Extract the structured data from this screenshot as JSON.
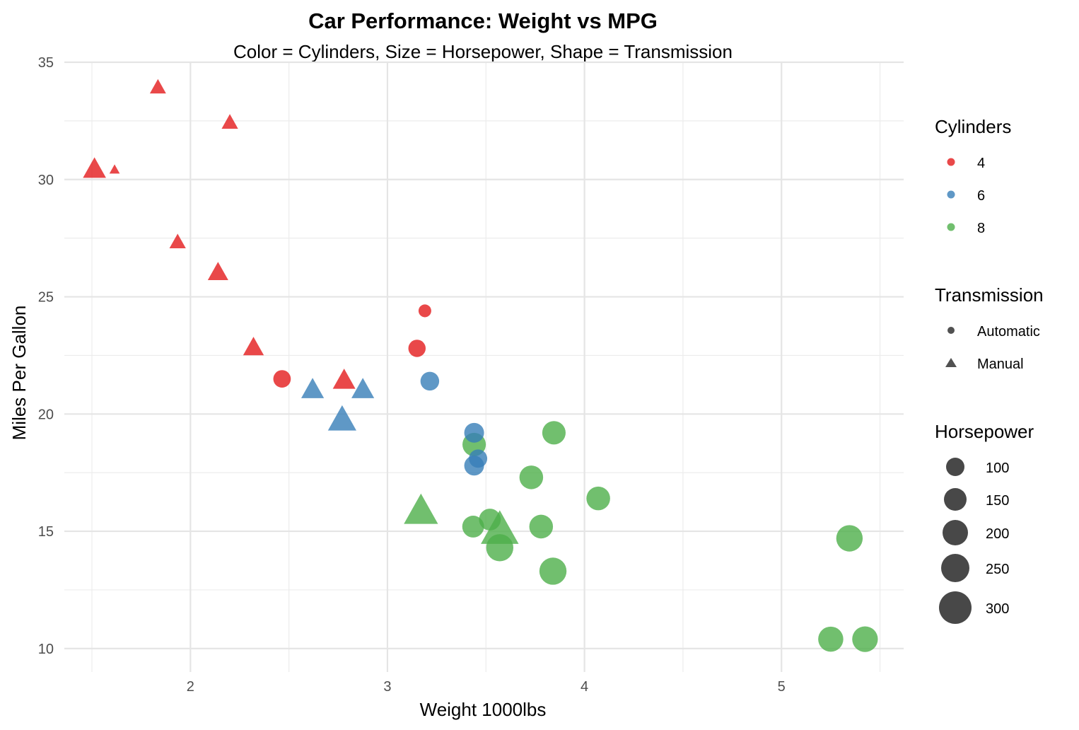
{
  "chart_data": {
    "type": "scatter",
    "title": "Car Performance: Weight vs MPG",
    "subtitle": "Color = Cylinders, Size = Horsepower, Shape = Transmission",
    "xlabel": "Weight 1000lbs",
    "ylabel": "Miles Per Gallon",
    "xlim": [
      1.36,
      5.62
    ],
    "ylim": [
      9.0,
      35.0
    ],
    "x_ticks": [
      2,
      3,
      4,
      5
    ],
    "y_ticks": [
      10,
      15,
      20,
      25,
      30,
      35
    ],
    "grid": true,
    "legend_position": "right",
    "colors": {
      "4": "#E41A1C",
      "6": "#377EB8",
      "8": "#4DAF4A"
    },
    "legends": {
      "cylinders": {
        "title": "Cylinders",
        "items": [
          "4",
          "6",
          "8"
        ]
      },
      "transmission": {
        "title": "Transmission",
        "items": [
          "Automatic",
          "Manual"
        ]
      },
      "horsepower": {
        "title": "Horsepower",
        "items": [
          "100",
          "150",
          "200",
          "250",
          "300"
        ]
      }
    },
    "points": [
      {
        "wt": 2.62,
        "mpg": 21.0,
        "cyl": "6",
        "hp": 110,
        "trans": "Manual"
      },
      {
        "wt": 2.875,
        "mpg": 21.0,
        "cyl": "6",
        "hp": 110,
        "trans": "Manual"
      },
      {
        "wt": 2.32,
        "mpg": 22.8,
        "cyl": "4",
        "hp": 93,
        "trans": "Manual"
      },
      {
        "wt": 3.215,
        "mpg": 21.4,
        "cyl": "6",
        "hp": 110,
        "trans": "Automatic"
      },
      {
        "wt": 3.44,
        "mpg": 18.7,
        "cyl": "8",
        "hp": 175,
        "trans": "Automatic"
      },
      {
        "wt": 3.46,
        "mpg": 18.1,
        "cyl": "6",
        "hp": 105,
        "trans": "Automatic"
      },
      {
        "wt": 3.57,
        "mpg": 14.3,
        "cyl": "8",
        "hp": 245,
        "trans": "Automatic"
      },
      {
        "wt": 3.19,
        "mpg": 24.4,
        "cyl": "4",
        "hp": 62,
        "trans": "Automatic"
      },
      {
        "wt": 3.15,
        "mpg": 22.8,
        "cyl": "4",
        "hp": 95,
        "trans": "Automatic"
      },
      {
        "wt": 3.44,
        "mpg": 19.2,
        "cyl": "6",
        "hp": 123,
        "trans": "Automatic"
      },
      {
        "wt": 3.44,
        "mpg": 17.8,
        "cyl": "6",
        "hp": 123,
        "trans": "Automatic"
      },
      {
        "wt": 4.07,
        "mpg": 16.4,
        "cyl": "8",
        "hp": 180,
        "trans": "Automatic"
      },
      {
        "wt": 3.73,
        "mpg": 17.3,
        "cyl": "8",
        "hp": 180,
        "trans": "Automatic"
      },
      {
        "wt": 3.78,
        "mpg": 15.2,
        "cyl": "8",
        "hp": 180,
        "trans": "Automatic"
      },
      {
        "wt": 5.25,
        "mpg": 10.4,
        "cyl": "8",
        "hp": 205,
        "trans": "Automatic"
      },
      {
        "wt": 5.424,
        "mpg": 10.4,
        "cyl": "8",
        "hp": 215,
        "trans": "Automatic"
      },
      {
        "wt": 5.345,
        "mpg": 14.7,
        "cyl": "8",
        "hp": 230,
        "trans": "Automatic"
      },
      {
        "wt": 2.2,
        "mpg": 32.4,
        "cyl": "4",
        "hp": 66,
        "trans": "Manual"
      },
      {
        "wt": 1.615,
        "mpg": 30.4,
        "cyl": "4",
        "hp": 52,
        "trans": "Manual"
      },
      {
        "wt": 1.835,
        "mpg": 33.9,
        "cyl": "4",
        "hp": 65,
        "trans": "Manual"
      },
      {
        "wt": 2.465,
        "mpg": 21.5,
        "cyl": "4",
        "hp": 97,
        "trans": "Automatic"
      },
      {
        "wt": 3.52,
        "mpg": 15.5,
        "cyl": "8",
        "hp": 150,
        "trans": "Automatic"
      },
      {
        "wt": 3.435,
        "mpg": 15.2,
        "cyl": "8",
        "hp": 150,
        "trans": "Automatic"
      },
      {
        "wt": 3.84,
        "mpg": 13.3,
        "cyl": "8",
        "hp": 245,
        "trans": "Automatic"
      },
      {
        "wt": 3.845,
        "mpg": 19.2,
        "cyl": "8",
        "hp": 175,
        "trans": "Automatic"
      },
      {
        "wt": 1.935,
        "mpg": 27.3,
        "cyl": "4",
        "hp": 66,
        "trans": "Manual"
      },
      {
        "wt": 2.14,
        "mpg": 26.0,
        "cyl": "4",
        "hp": 91,
        "trans": "Manual"
      },
      {
        "wt": 1.513,
        "mpg": 30.4,
        "cyl": "4",
        "hp": 113,
        "trans": "Manual"
      },
      {
        "wt": 3.17,
        "mpg": 15.8,
        "cyl": "8",
        "hp": 264,
        "trans": "Manual"
      },
      {
        "wt": 2.77,
        "mpg": 19.7,
        "cyl": "6",
        "hp": 175,
        "trans": "Manual"
      },
      {
        "wt": 3.57,
        "mpg": 15.0,
        "cyl": "8",
        "hp": 335,
        "trans": "Manual"
      },
      {
        "wt": 2.78,
        "mpg": 21.4,
        "cyl": "4",
        "hp": 109,
        "trans": "Manual"
      }
    ]
  }
}
